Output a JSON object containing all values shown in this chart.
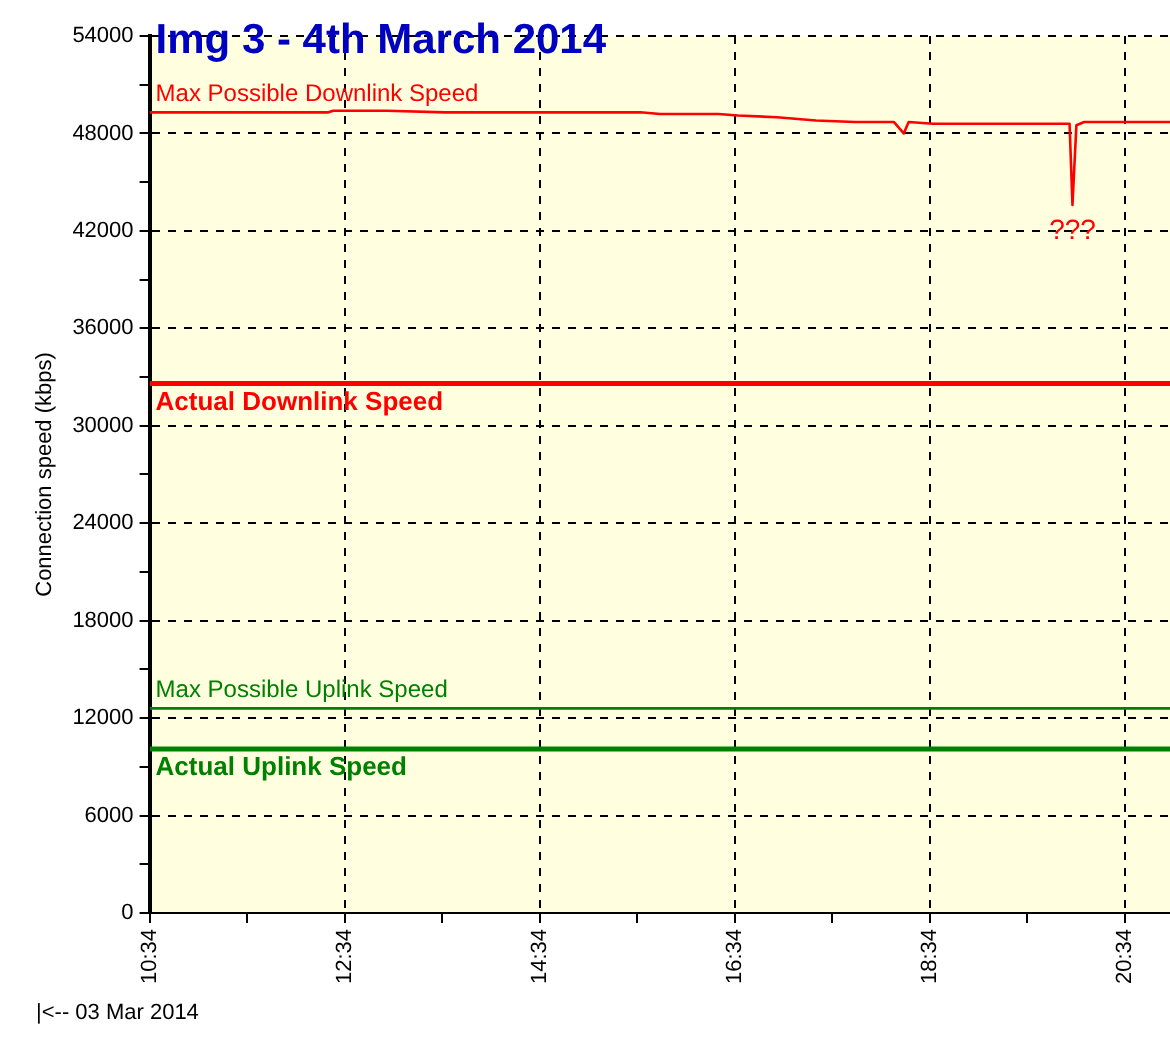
{
  "chart_data": {
    "type": "line",
    "title": "Img 3 - 4th March 2014",
    "ylabel": "Connection speed (kbps)",
    "xlim": [
      10.5667,
      21.03
    ],
    "ylim": [
      0,
      54000
    ],
    "xticks": [
      {
        "value": 10.5667,
        "label": "10:34"
      },
      {
        "value": 11.5667,
        "label": null
      },
      {
        "value": 12.5667,
        "label": "12:34"
      },
      {
        "value": 13.5667,
        "label": null
      },
      {
        "value": 14.5667,
        "label": "14:34"
      },
      {
        "value": 15.5667,
        "label": null
      },
      {
        "value": 16.5667,
        "label": "16:34"
      },
      {
        "value": 17.5667,
        "label": null
      },
      {
        "value": 18.5667,
        "label": "18:34"
      },
      {
        "value": 19.5667,
        "label": null
      },
      {
        "value": 20.5667,
        "label": "20:34"
      }
    ],
    "yticks": [
      0,
      {
        "value": 3000,
        "label": null
      },
      6000,
      {
        "value": 9000,
        "label": null
      },
      12000,
      {
        "value": 15000,
        "label": null
      },
      18000,
      {
        "value": 21000,
        "label": null
      },
      24000,
      {
        "value": 27000,
        "label": null
      },
      30000,
      {
        "value": 33000,
        "label": null
      },
      36000,
      {
        "value": 39000,
        "label": null
      },
      42000,
      {
        "value": 45000,
        "label": null
      },
      48000,
      {
        "value": 51000,
        "label": null
      },
      54000
    ],
    "grid": true,
    "legend": false,
    "marker": "none",
    "series": [
      {
        "name": "Max Possible Downlink Speed",
        "color": "#ff0000",
        "x": [
          10.57,
          11.5,
          12.4,
          12.45,
          13.0,
          13.6,
          14.6,
          15.6,
          15.8,
          16.4,
          16.6,
          17.0,
          17.4,
          17.8,
          18.2,
          18.3,
          18.35,
          18.6,
          19.5,
          20.0,
          20.03,
          20.07,
          20.15,
          21.03
        ],
        "values": [
          49300,
          49300,
          49300,
          49400,
          49400,
          49300,
          49300,
          49300,
          49200,
          49200,
          49100,
          49000,
          48800,
          48700,
          48700,
          48000,
          48700,
          48600,
          48600,
          48600,
          43600,
          48500,
          48700,
          48700
        ]
      },
      {
        "name": "Actual Downlink Speed",
        "color": "#ff0000",
        "x": [
          10.57,
          21.03
        ],
        "values": [
          32600,
          32600
        ]
      },
      {
        "name": "Max Possible Uplink Speed",
        "color": "#008000",
        "x": [
          10.57,
          21.03
        ],
        "values": [
          12600,
          12600
        ]
      },
      {
        "name": "Actual Uplink Speed",
        "color": "#008000",
        "x": [
          10.57,
          21.03
        ],
        "values": [
          10100,
          10100
        ]
      }
    ],
    "annotations": [
      {
        "text": "???",
        "x": 20.03,
        "y": 43600
      },
      "|<-- 03 Mar 2014"
    ]
  }
}
